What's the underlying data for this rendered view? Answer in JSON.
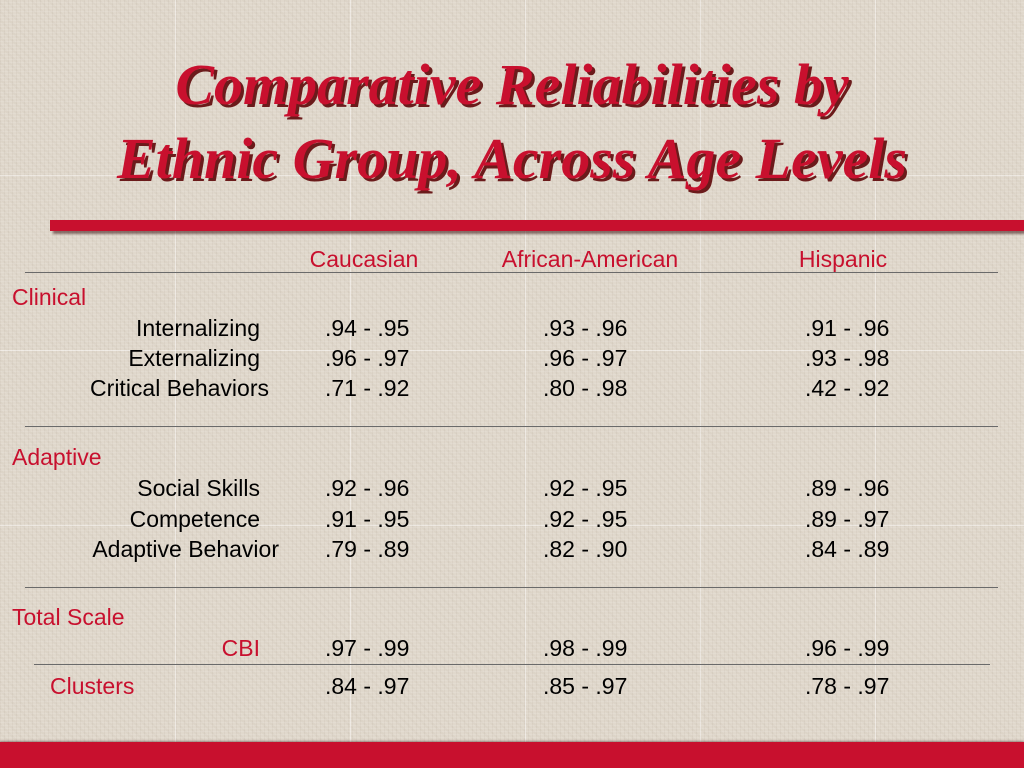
{
  "title": {
    "line1": "Comparative Reliabilities by",
    "line2": "Ethnic Group, Across Age Levels"
  },
  "columns": [
    "Caucasian",
    "African-American",
    "Hispanic"
  ],
  "sections": [
    {
      "name": "Clinical",
      "rows": [
        {
          "label": "Internalizing",
          "values": [
            ".94 - .95",
            ".93 - .96",
            ".91 - .96"
          ]
        },
        {
          "label": "Externalizing",
          "values": [
            ".96 - .97",
            ".96 - .97",
            ".93 - .98"
          ]
        },
        {
          "label": "Critical Behaviors",
          "values": [
            ".71 - .92",
            ".80 - .98",
            ".42 - .92"
          ]
        }
      ]
    },
    {
      "name": "Adaptive",
      "rows": [
        {
          "label": "Social Skills",
          "values": [
            ".92 - .96",
            ".92 - .95",
            ".89 - .96"
          ]
        },
        {
          "label": "Competence",
          "values": [
            ".91 - .95",
            ".92 - .95",
            ".89 - .97"
          ]
        },
        {
          "label": "Adaptive Behavior",
          "values": [
            ".79 - .89",
            ".82 - .90",
            ".84 - .89"
          ]
        }
      ]
    },
    {
      "name": "Total Scale",
      "rows": [
        {
          "label": "CBI",
          "values": [
            ".97 - .99",
            ".98 - .99",
            ".96 - .99"
          ]
        }
      ]
    }
  ],
  "clusters": {
    "label": "Clusters",
    "values": [
      ".84 - .97",
      ".85 - .97",
      ".78 - .97"
    ]
  },
  "colors": {
    "accent": "#c8102e",
    "background": "#e0d8cc",
    "title_shadow": "#6b1b1b"
  }
}
